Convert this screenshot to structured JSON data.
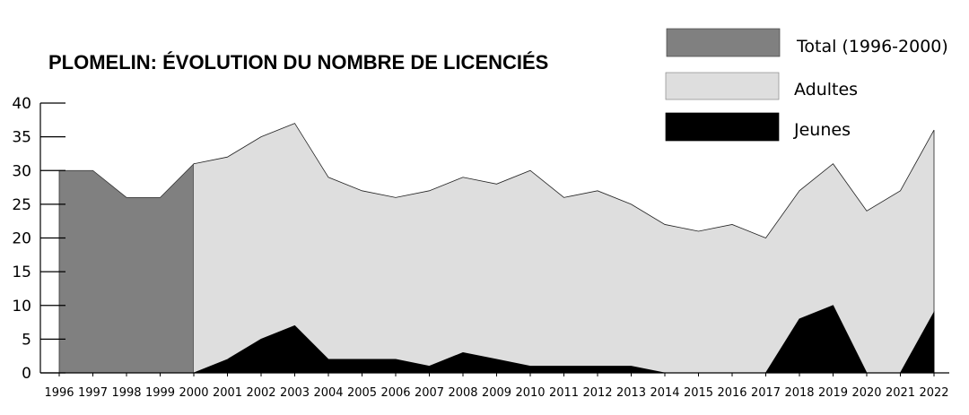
{
  "chart_data": {
    "type": "area",
    "title": "PLOMELIN: ÉVOLUTION DU NOMBRE DE LICENCIÉS",
    "xlabel": "",
    "ylabel": "",
    "x": [
      "1996",
      "1997",
      "1998",
      "1999",
      "2000",
      "2001",
      "2002",
      "2003",
      "2004",
      "2005",
      "2006",
      "2007",
      "2008",
      "2009",
      "2010",
      "2011",
      "2012",
      "2013",
      "2014",
      "2015",
      "2016",
      "2017",
      "2018",
      "2019",
      "2020",
      "2021",
      "2022"
    ],
    "ylim": [
      0,
      40
    ],
    "yticks": [
      0,
      5,
      10,
      15,
      20,
      25,
      30,
      35,
      40
    ],
    "grid": false,
    "legend_position": "top-right",
    "series": [
      {
        "name": "Total (1996-2000)",
        "color": "#808080",
        "values": [
          30,
          30,
          26,
          26,
          31,
          null,
          null,
          null,
          null,
          null,
          null,
          null,
          null,
          null,
          null,
          null,
          null,
          null,
          null,
          null,
          null,
          null,
          null,
          null,
          null,
          null,
          null
        ]
      },
      {
        "name": "Adultes",
        "color": "#dedede",
        "values": [
          null,
          null,
          null,
          null,
          31,
          30,
          30,
          30,
          27,
          25,
          24,
          26,
          26,
          26,
          29,
          25,
          26,
          24,
          22,
          21,
          22,
          20,
          19,
          21,
          24,
          27,
          27
        ]
      },
      {
        "name": "Jeunes",
        "color": "#000000",
        "values": [
          null,
          null,
          null,
          null,
          0,
          2,
          5,
          7,
          2,
          2,
          2,
          1,
          3,
          2,
          1,
          1,
          1,
          1,
          0,
          0,
          0,
          0,
          8,
          10,
          0,
          0,
          9
        ]
      }
    ]
  }
}
